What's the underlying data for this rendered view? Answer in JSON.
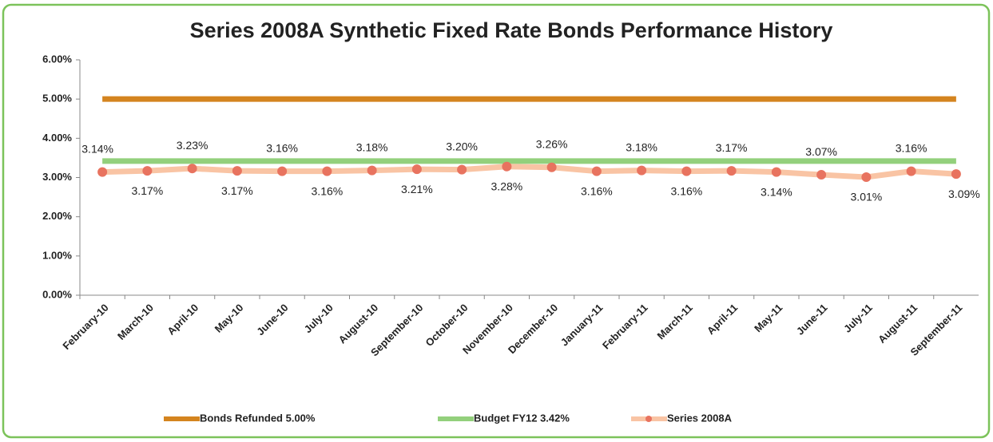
{
  "chart_data": {
    "type": "line",
    "title": "Series 2008A Synthetic Fixed Rate Bonds Performance History",
    "categories": [
      "February-10",
      "March-10",
      "April-10",
      "May-10",
      "June-10",
      "July-10",
      "August-10",
      "September-10",
      "October-10",
      "November-10",
      "December-10",
      "January-11",
      "February-11",
      "March-11",
      "April-11",
      "May-11",
      "June-11",
      "July-11",
      "August-11",
      "September-11"
    ],
    "series": [
      {
        "name": "Bonds Refunded 5.00%",
        "color": "#d4841f",
        "values": [
          5,
          5,
          5,
          5,
          5,
          5,
          5,
          5,
          5,
          5,
          5,
          5,
          5,
          5,
          5,
          5,
          5,
          5,
          5,
          5
        ]
      },
      {
        "name": "Budget FY12 3.42%",
        "color": "#93d07c",
        "values": [
          3.42,
          3.42,
          3.42,
          3.42,
          3.42,
          3.42,
          3.42,
          3.42,
          3.42,
          3.42,
          3.42,
          3.42,
          3.42,
          3.42,
          3.42,
          3.42,
          3.42,
          3.42,
          3.42,
          3.42
        ]
      },
      {
        "name": "Series 2008A",
        "color": "#f9c4a4",
        "marker_color": "#e8735f",
        "values": [
          3.14,
          3.17,
          3.23,
          3.17,
          3.16,
          3.16,
          3.18,
          3.21,
          3.2,
          3.28,
          3.26,
          3.16,
          3.18,
          3.16,
          3.17,
          3.14,
          3.07,
          3.01,
          3.16,
          3.09
        ],
        "value_labels": [
          "3.14%",
          "3.17%",
          "3.23%",
          "3.17%",
          "3.16%",
          "3.16%",
          "3.18%",
          "3.21%",
          "3.20%",
          "3.28%",
          "3.26%",
          "3.16%",
          "3.18%",
          "3.16%",
          "3.17%",
          "3.14%",
          "3.07%",
          "3.01%",
          "3.16%",
          "3.09%"
        ]
      }
    ],
    "ylim": [
      0,
      6
    ],
    "yticks": [
      {
        "value": 0,
        "label": "0.00%"
      },
      {
        "value": 1,
        "label": "1.00%"
      },
      {
        "value": 2,
        "label": "2.00%"
      },
      {
        "value": 3,
        "label": "3.00%"
      },
      {
        "value": 4,
        "label": "4.00%"
      },
      {
        "value": 5,
        "label": "5.00%"
      },
      {
        "value": 6,
        "label": "6.00%"
      }
    ],
    "legend": "bottom"
  }
}
